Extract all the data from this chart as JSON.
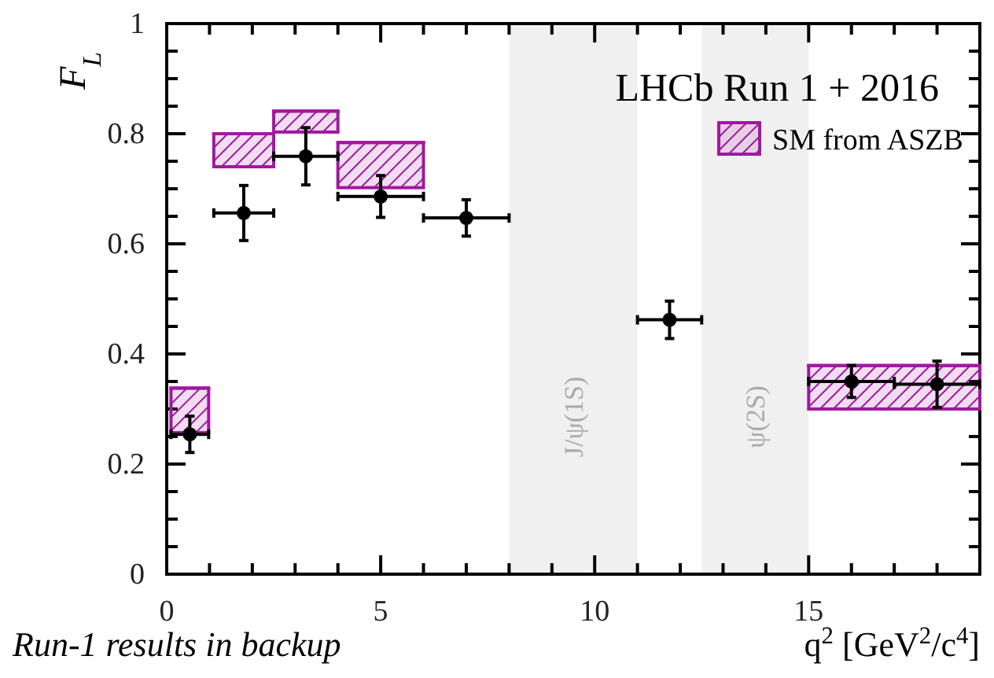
{
  "chart_data": {
    "type": "scatter",
    "xlabel": "q$^{2}$ [GeV$^{2}$/c$^{4}$]",
    "ylabel": "F$_{L}$",
    "xlim": [
      0,
      19
    ],
    "xticks": [
      0,
      {
        "value": 1,
        "label": null
      },
      {
        "value": 2,
        "label": null
      },
      {
        "value": 3,
        "label": null
      },
      {
        "value": 4,
        "label": null
      },
      5,
      {
        "value": 6,
        "label": null
      },
      {
        "value": 7,
        "label": null
      },
      {
        "value": 8,
        "label": null
      },
      {
        "value": 9,
        "label": null
      },
      10,
      {
        "value": 11,
        "label": null
      },
      {
        "value": 12,
        "label": null
      },
      {
        "value": 13,
        "label": null
      },
      {
        "value": 14,
        "label": null
      },
      15,
      {
        "value": 16,
        "label": null
      },
      {
        "value": 17,
        "label": null
      },
      {
        "value": 18,
        "label": null
      }
    ],
    "ylim": [
      0,
      1
    ],
    "yticks": [
      0,
      {
        "value": 0.05,
        "label": null
      },
      {
        "value": 0.1,
        "label": null
      },
      {
        "value": 0.15,
        "label": null
      },
      0.2,
      {
        "value": 0.25,
        "label": null
      },
      {
        "value": 0.3,
        "label": null
      },
      {
        "value": 0.35,
        "label": null
      },
      0.4,
      {
        "value": 0.45,
        "label": null
      },
      {
        "value": 0.5,
        "label": null
      },
      {
        "value": 0.55,
        "label": null
      },
      0.6,
      {
        "value": 0.65,
        "label": null
      },
      {
        "value": 0.7,
        "label": null
      },
      {
        "value": 0.75,
        "label": null
      },
      0.8,
      {
        "value": 0.85,
        "label": null
      },
      {
        "value": 0.9,
        "label": null
      },
      {
        "value": 0.95,
        "label": null
      },
      1
    ],
    "bands": [
      {
        "axis": "x",
        "from": 8,
        "to": 11,
        "label": "J/ψ(1S)",
        "color": "#f0f0f0"
      },
      {
        "axis": "x",
        "from": 12.5,
        "to": 15,
        "label": "ψ(2S)",
        "color": "#f0f0f0"
      }
    ],
    "series": [
      {
        "name": "SM from ASZB",
        "type": "bar",
        "color": "#a0189e",
        "x": [
          0.54,
          1.8,
          3.25,
          5,
          17
        ],
        "base": [
          0.257,
          0.74,
          0.803,
          0.702,
          0.3
        ],
        "values": [
          0.081,
          0.06,
          0.038,
          0.082,
          0.079
        ],
        "xerrors": [
          0.44,
          0.7,
          0.75,
          1,
          2
        ]
      },
      {
        "color": "#000000",
        "marker": "circle",
        "x": [
          0.54,
          1.8,
          3.25,
          5,
          7,
          11.75,
          16,
          18
        ],
        "values": [
          0.254,
          0.656,
          0.759,
          0.686,
          0.647,
          0.462,
          0.35,
          0.345
        ],
        "xerrors": [
          0.44,
          0.7,
          0.75,
          1,
          1,
          0.75,
          1,
          1
        ],
        "errors": [
          0.033,
          0.05,
          0.052,
          0.038,
          0.033,
          0.034,
          0.029,
          0.042
        ]
      }
    ],
    "legend": "top right",
    "annotations": [
      "LHCb Run 1 + 2016",
      "Run-1 results in backup"
    ]
  }
}
